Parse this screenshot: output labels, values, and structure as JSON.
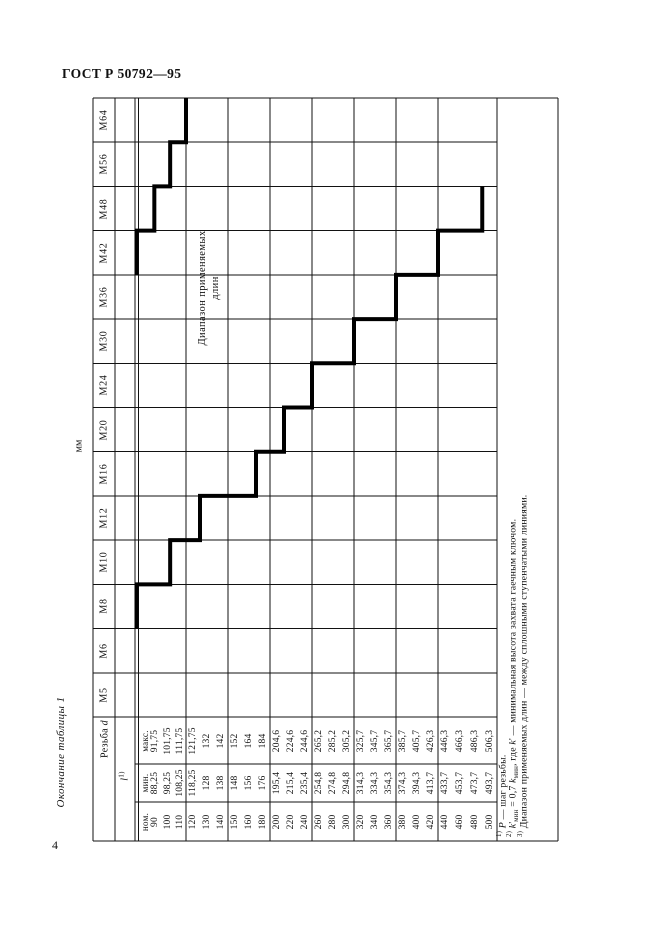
{
  "header": {
    "title": "ГОСТ Р 50792—95",
    "continuation_note": "Окончание таблицы 1"
  },
  "footer": {
    "page_number": "4"
  },
  "table": {
    "units_label": "мм",
    "thread_col_header": "Резьба *d*",
    "length_col_header": "*l*^{1)}",
    "sub_row_labels": [
      "макс.",
      "мин.",
      "ном."
    ],
    "range_label_lines": [
      "Диапазон применяемых",
      "длин"
    ],
    "thread_sizes": [
      "М64",
      "М56",
      "М48",
      "М42",
      "М36",
      "М30",
      "М24",
      "М20",
      "М16",
      "М12",
      "М10",
      "М8",
      "М6",
      "М5"
    ],
    "length_columns": [
      {
        "nom": [
          "90",
          "100",
          "110"
        ],
        "min": [
          "88,25",
          "98,25",
          "108,25"
        ],
        "max": [
          "91,75",
          "101,75",
          "111,75"
        ]
      },
      {
        "nom": [
          "120",
          "130",
          "140"
        ],
        "min": [
          "118,25",
          "128",
          "138"
        ],
        "max": [
          "121,75",
          "132",
          "142"
        ]
      },
      {
        "nom": [
          "150",
          "160",
          "180"
        ],
        "min": [
          "148",
          "156",
          "176"
        ],
        "max": [
          "152",
          "164",
          "184"
        ]
      },
      {
        "nom": [
          "200",
          "220",
          "240"
        ],
        "min": [
          "195,4",
          "215,4",
          "235,4"
        ],
        "max": [
          "204,6",
          "224,6",
          "244,6"
        ]
      },
      {
        "nom": [
          "260",
          "280",
          "300"
        ],
        "min": [
          "254,8",
          "274,8",
          "294,8"
        ],
        "max": [
          "265,2",
          "285,2",
          "305,2"
        ]
      },
      {
        "nom": [
          "320",
          "340",
          "360"
        ],
        "min": [
          "314,3",
          "334,3",
          "354,3"
        ],
        "max": [
          "325,7",
          "345,7",
          "365,7"
        ]
      },
      {
        "nom": [
          "380",
          "400",
          "420"
        ],
        "min": [
          "374,3",
          "394,3",
          "413,7"
        ],
        "max": [
          "385,7",
          "405,7",
          "426,3"
        ]
      },
      {
        "nom": [
          "440",
          "460",
          "480",
          "500"
        ],
        "min": [
          "433,7",
          "453,7",
          "473,7",
          "493,7"
        ],
        "max": [
          "446,3",
          "466,3",
          "486,3",
          "506,3"
        ]
      }
    ],
    "footnotes": [
      {
        "marker": "1)",
        "text": "*Р* — шаг резьбы."
      },
      {
        "marker": "2)",
        "text": "*k*'_{мин} = 0,7 *k*_{мин}, где *k*' — минимальная высота захвата гаечным ключом."
      },
      {
        "marker": "3)",
        "text": "Диапазон применяемых длин — между сплошными ступенчатыми линиями."
      }
    ]
  },
  "chart_data": {
    "type": "step-range",
    "title": "Диапазон применяемых длин",
    "note": "Диапазон применяемых длин — между сплошными ступенчатыми линиями",
    "x_axis_lengths_nominal": [
      90,
      100,
      110,
      120,
      130,
      140,
      150,
      160,
      180,
      200,
      220,
      240,
      260,
      280,
      300,
      320,
      340,
      360,
      380,
      400,
      420,
      440,
      460,
      480,
      500
    ],
    "rows": [
      {
        "size": "М64",
        "min_len": 120,
        "max_len": null
      },
      {
        "size": "М56",
        "min_len": 110,
        "max_len": null
      },
      {
        "size": "М48",
        "min_len": 100,
        "max_len": 480
      },
      {
        "size": "М42",
        "min_len": 90,
        "max_len": 420
      },
      {
        "size": "М36",
        "min_len": null,
        "max_len": 360
      },
      {
        "size": "М30",
        "min_len": null,
        "max_len": 300
      },
      {
        "size": "М24",
        "min_len": null,
        "max_len": 240
      },
      {
        "size": "М20",
        "min_len": null,
        "max_len": 200
      },
      {
        "size": "М16",
        "min_len": null,
        "max_len": 160
      },
      {
        "size": "М12",
        "min_len": null,
        "max_len": 120
      },
      {
        "size": "М10",
        "min_len": null,
        "max_len": 100
      },
      {
        "size": "М8",
        "min_len": null,
        "max_len": 80
      },
      {
        "size": "М6",
        "min_len": null,
        "max_len": null
      },
      {
        "size": "М5",
        "min_len": null,
        "max_len": null
      }
    ]
  }
}
